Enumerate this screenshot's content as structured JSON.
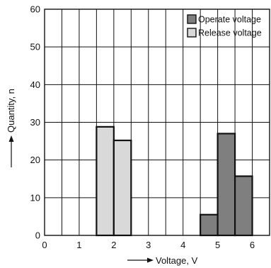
{
  "chart_data": {
    "type": "bar",
    "xlabel": "Voltage, V",
    "ylabel": "Quantity, n",
    "xlim": [
      0,
      6.5
    ],
    "ylim": [
      0,
      60
    ],
    "x_ticks": [
      "0",
      "1",
      "2",
      "3",
      "4",
      "5",
      "6"
    ],
    "y_ticks": [
      "0",
      "10",
      "20",
      "30",
      "40",
      "50",
      "60"
    ],
    "grid": true,
    "bin_width": 0.5,
    "legend_position": "top-right",
    "series": [
      {
        "name": "Operate voltage",
        "color": "#7f7f7f",
        "bins": [
          {
            "x_start": 4.5,
            "x_end": 5.0,
            "value": 5.5
          },
          {
            "x_start": 5.0,
            "x_end": 5.5,
            "value": 27
          },
          {
            "x_start": 5.5,
            "x_end": 6.0,
            "value": 15.7
          }
        ]
      },
      {
        "name": "Release voltage",
        "color": "#d9d9d9",
        "bins": [
          {
            "x_start": 1.5,
            "x_end": 2.0,
            "value": 28.8
          },
          {
            "x_start": 2.0,
            "x_end": 2.5,
            "value": 25.2
          }
        ]
      }
    ]
  }
}
